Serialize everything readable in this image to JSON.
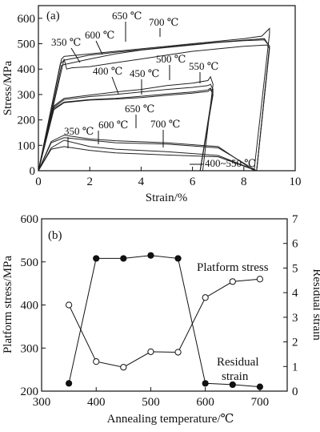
{
  "chart_data": [
    {
      "panel": "a",
      "panel_label": "(a)",
      "type": "line",
      "xlabel": "Strain/%",
      "ylabel": "Stress/MPa",
      "xlim": [
        0,
        10
      ],
      "ylim": [
        0,
        650
      ],
      "xticks": [
        0,
        2,
        4,
        6,
        8,
        10
      ],
      "yticks": [
        0,
        100,
        200,
        300,
        400,
        500,
        600
      ],
      "grid": false,
      "series": [
        {
          "id": "c700",
          "label": "700 ℃",
          "points": [
            [
              0,
              0
            ],
            [
              0.9,
              440
            ],
            [
              1.0,
              450
            ],
            [
              2,
              460
            ],
            [
              3,
              470
            ],
            [
              4,
              480
            ],
            [
              5,
              490
            ],
            [
              6,
              500
            ],
            [
              7,
              510
            ],
            [
              8,
              520
            ],
            [
              8.7,
              530
            ],
            [
              9.0,
              560
            ],
            [
              9.0,
              540
            ],
            [
              8.4,
              0
            ]
          ]
        },
        {
          "id": "c650",
          "label": "650 ℃",
          "points": [
            [
              0,
              0
            ],
            [
              0.85,
              420
            ],
            [
              1.0,
              435
            ],
            [
              2,
              455
            ],
            [
              3,
              466
            ],
            [
              4,
              476
            ],
            [
              5,
              487
            ],
            [
              6,
              497
            ],
            [
              7,
              506
            ],
            [
              8,
              514
            ],
            [
              8.8,
              520
            ],
            [
              9.0,
              490
            ],
            [
              8.5,
              0
            ]
          ]
        },
        {
          "id": "c600",
          "label": "600 ℃",
          "points": [
            [
              0,
              0
            ],
            [
              0.9,
              415
            ],
            [
              1.1,
              420
            ],
            [
              2,
              440
            ],
            [
              3,
              460
            ],
            [
              4,
              475
            ],
            [
              5,
              485
            ],
            [
              6,
              495
            ],
            [
              7,
              505
            ],
            [
              8,
              512
            ],
            [
              8.8,
              515
            ],
            [
              9.0,
              490
            ],
            [
              8.5,
              0
            ]
          ]
        },
        {
          "id": "c350",
          "label": "350 ℃",
          "points": [
            [
              0,
              0
            ],
            [
              1.0,
              440
            ],
            [
              1.1,
              400
            ],
            [
              1.3,
              405
            ],
            [
              2,
              410
            ],
            [
              3,
              425
            ],
            [
              4,
              440
            ],
            [
              5,
              455
            ],
            [
              6,
              470
            ],
            [
              7,
              480
            ],
            [
              8,
              490
            ],
            [
              8.9,
              495
            ],
            [
              9.0,
              480
            ],
            [
              8.5,
              0
            ]
          ]
        },
        {
          "id": "c550",
          "label": "550 ℃",
          "points": [
            [
              0,
              0
            ],
            [
              0.6,
              250
            ],
            [
              1.0,
              280
            ],
            [
              2,
              292
            ],
            [
              3,
              300
            ],
            [
              4,
              310
            ],
            [
              5,
              320
            ],
            [
              6,
              328
            ],
            [
              6.6,
              335
            ],
            [
              6.7,
              340
            ],
            [
              6.8,
              320
            ],
            [
              6.3,
              0
            ]
          ]
        },
        {
          "id": "c500",
          "label": "500 ℃",
          "points": [
            [
              0,
              0
            ],
            [
              0.6,
              255
            ],
            [
              1.0,
              285
            ],
            [
              2,
              298
            ],
            [
              3,
              310
            ],
            [
              4,
              320
            ],
            [
              5,
              335
            ],
            [
              6,
              345
            ],
            [
              6.6,
              355
            ],
            [
              6.7,
              370
            ],
            [
              6.8,
              340
            ],
            [
              6.4,
              0
            ]
          ]
        },
        {
          "id": "c450",
          "label": "450 ℃",
          "points": [
            [
              0,
              0
            ],
            [
              0.6,
              245
            ],
            [
              1.0,
              270
            ],
            [
              2,
              280
            ],
            [
              3,
              285
            ],
            [
              4,
              293
            ],
            [
              5,
              302
            ],
            [
              6,
              310
            ],
            [
              6.6,
              318
            ],
            [
              6.7,
              325
            ],
            [
              6.8,
              310
            ],
            [
              6.3,
              0
            ]
          ]
        },
        {
          "id": "c400",
          "label": "400 ℃",
          "points": [
            [
              0,
              0
            ],
            [
              0.6,
              240
            ],
            [
              1.0,
              268
            ],
            [
              2,
              278
            ],
            [
              3,
              282
            ],
            [
              4,
              288
            ],
            [
              5,
              297
            ],
            [
              6,
              305
            ],
            [
              6.6,
              312
            ],
            [
              6.7,
              320
            ],
            [
              6.8,
              300
            ],
            [
              6.3,
              0
            ]
          ]
        },
        {
          "id": "u600",
          "label": "600 ℃",
          "points": [
            [
              8.5,
              0
            ],
            [
              7.0,
              60
            ],
            [
              5,
              75
            ],
            [
              3,
              85
            ],
            [
              2,
              95
            ],
            [
              1,
              120
            ],
            [
              0.5,
              90
            ],
            [
              0,
              0
            ]
          ]
        },
        {
          "id": "u650",
          "label": "650 ℃",
          "points": [
            [
              8.5,
              0
            ],
            [
              7.0,
              90
            ],
            [
              5,
              105
            ],
            [
              3,
              110
            ],
            [
              2,
              120
            ],
            [
              1,
              130
            ],
            [
              0.5,
              110
            ],
            [
              0,
              0
            ]
          ]
        },
        {
          "id": "u700",
          "label": "700 ℃",
          "points": [
            [
              8.4,
              0
            ],
            [
              7.0,
              95
            ],
            [
              5,
              110
            ],
            [
              3,
              118
            ],
            [
              2,
              125
            ],
            [
              1,
              140
            ],
            [
              0.5,
              115
            ],
            [
              0,
              0
            ]
          ]
        },
        {
          "id": "u350",
          "label": "350 ℃",
          "points": [
            [
              8.5,
              0
            ],
            [
              7.0,
              55
            ],
            [
              5,
              62
            ],
            [
              3,
              70
            ],
            [
              2,
              80
            ],
            [
              1,
              95
            ],
            [
              0.5,
              85
            ],
            [
              0,
              0
            ]
          ]
        }
      ],
      "annotations": [
        {
          "text": "650 ℃"
        },
        {
          "text": "700 ℃"
        },
        {
          "text": "350 ℃"
        },
        {
          "text": "600 ℃"
        },
        {
          "text": "500 ℃"
        },
        {
          "text": "400 ℃"
        },
        {
          "text": "450 ℃"
        },
        {
          "text": "550 ℃"
        },
        {
          "text": "650 ℃"
        },
        {
          "text": "350 ℃"
        },
        {
          "text": "600 ℃"
        },
        {
          "text": "700 ℃"
        },
        {
          "text": "400~550 ℃"
        }
      ]
    },
    {
      "panel": "b",
      "panel_label": "(b)",
      "type": "scatter",
      "xlabel": "Annealing temperature/℃",
      "ylabel": "Platform stress/MPa",
      "y2label": "Residual strain",
      "xlim": [
        300,
        750
      ],
      "ylim": [
        200,
        600
      ],
      "y2lim": [
        0,
        7
      ],
      "xticks": [
        300,
        400,
        500,
        600,
        700
      ],
      "yticks": [
        200,
        300,
        400,
        500,
        600
      ],
      "y2ticks": [
        0,
        1,
        2,
        3,
        4,
        5,
        6,
        7
      ],
      "grid": false,
      "series": [
        {
          "name": "Platform stress",
          "axis": "left",
          "marker": "filled-circle",
          "x": [
            350,
            400,
            450,
            500,
            550,
            600,
            650,
            700
          ],
          "values": [
            218,
            508,
            508,
            515,
            508,
            218,
            215,
            210
          ]
        },
        {
          "name": "Residual strain",
          "axis": "right",
          "marker": "open-circle",
          "x": [
            350,
            400,
            450,
            500,
            550,
            600,
            650,
            700
          ],
          "values": [
            3.5,
            1.2,
            0.97,
            1.6,
            1.58,
            3.8,
            4.45,
            4.55
          ]
        }
      ],
      "legend_labels": [
        "Platform stress",
        "Residual",
        "strain"
      ]
    }
  ]
}
